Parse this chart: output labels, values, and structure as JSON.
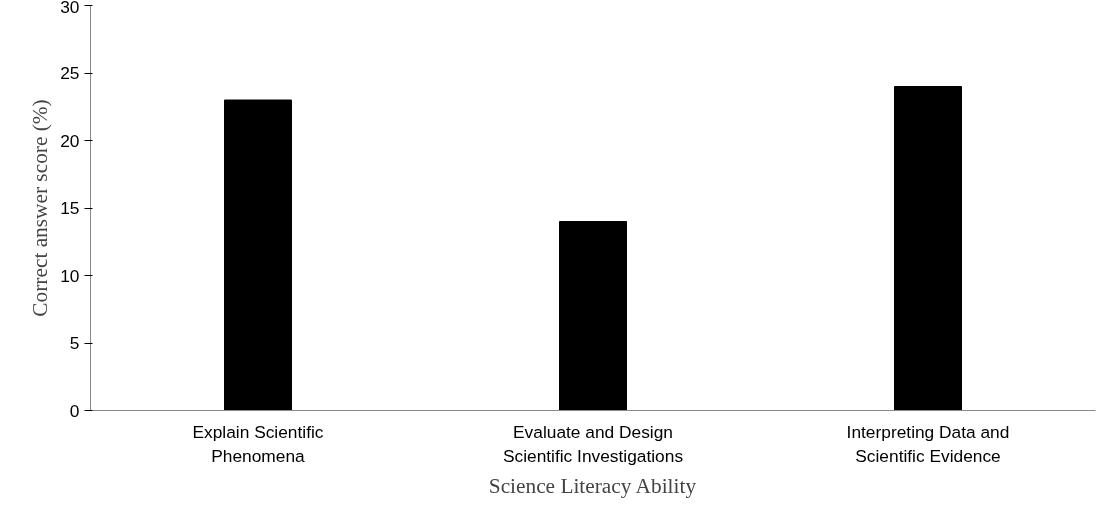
{
  "chart_data": {
    "type": "bar",
    "xlabel": "Science Literacy Ability",
    "ylabel": "Correct answer score (%)",
    "categories": [
      "Explain Scientific Phenomena",
      "Evaluate and Design Scientific Investigations",
      "Interpreting Data and Scientific Evidence"
    ],
    "values": [
      23,
      14,
      24
    ],
    "color": "#000000",
    "ylim": [
      0,
      30
    ],
    "yticks": [
      0,
      5,
      10,
      15,
      20,
      25,
      30
    ],
    "grid": false
  }
}
